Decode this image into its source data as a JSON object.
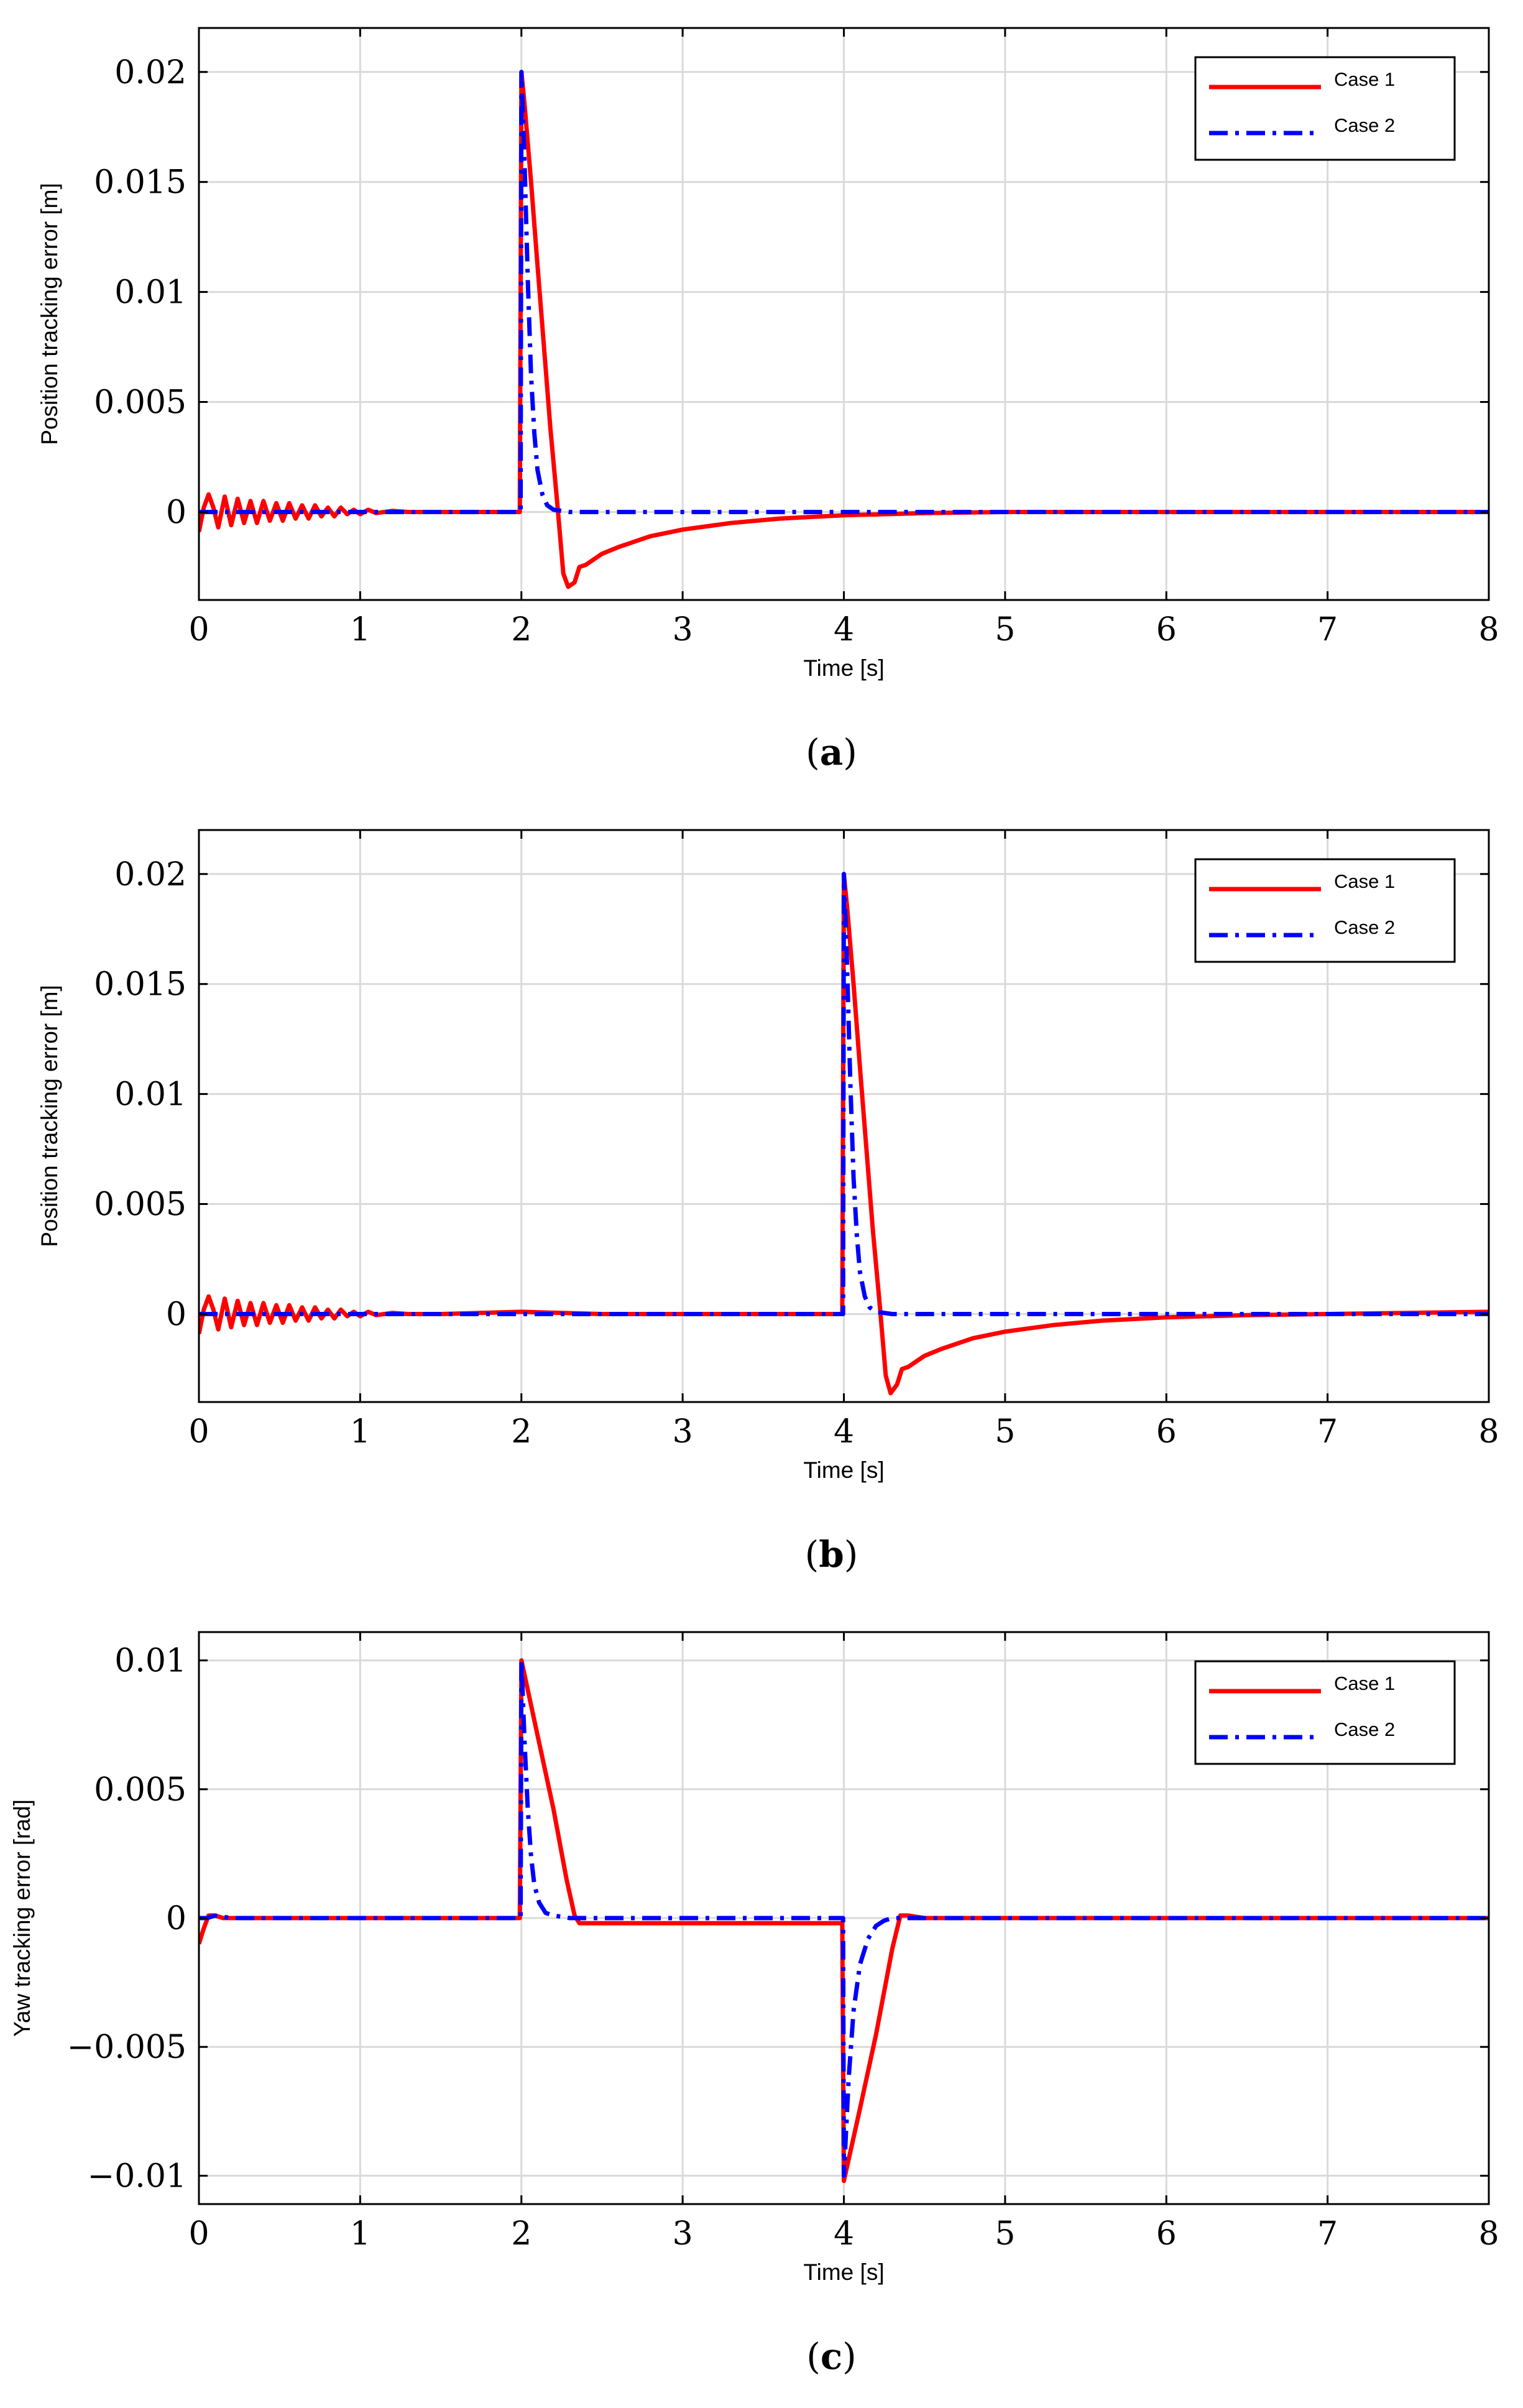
{
  "chart_data": [
    {
      "type": "line",
      "panel": "a",
      "caption": "(a)",
      "caption_letter": "a",
      "xlabel": "Time [s]",
      "ylabel": "Position tracking error [m]",
      "xlim": [
        0,
        8
      ],
      "ylim": [
        -0.004,
        0.022
      ],
      "xticks": [
        0,
        1,
        2,
        3,
        4,
        5,
        6,
        7,
        8
      ],
      "xtick_labels": [
        "0",
        "1",
        "2",
        "3",
        "4",
        "5",
        "6",
        "7",
        "8"
      ],
      "yticks": [
        0,
        0.005,
        0.01,
        0.015,
        0.02
      ],
      "ytick_labels": [
        "0",
        "0.005",
        "0.01",
        "0.015",
        "0.02"
      ],
      "grid": true,
      "legend": {
        "position": "top-right",
        "entries": [
          "Case 1",
          "Case 2"
        ]
      },
      "series": [
        {
          "name": "Case 1",
          "color": "#ff0000",
          "style": "solid",
          "x": [
            0,
            0.03,
            0.06,
            0.09,
            0.12,
            0.16,
            0.2,
            0.24,
            0.28,
            0.32,
            0.36,
            0.4,
            0.44,
            0.48,
            0.52,
            0.56,
            0.6,
            0.64,
            0.68,
            0.72,
            0.76,
            0.8,
            0.84,
            0.88,
            0.92,
            0.96,
            1.0,
            1.05,
            1.1,
            1.2,
            1.3,
            1.5,
            1.99,
            2.0,
            2.02,
            2.06,
            2.1,
            2.14,
            2.18,
            2.22,
            2.26,
            2.29,
            2.33,
            2.36,
            2.4,
            2.5,
            2.6,
            2.8,
            3.0,
            3.3,
            3.6,
            4.0,
            4.5,
            5.0,
            8.0
          ],
          "y": [
            -0.0009,
            0.0002,
            0.0008,
            0.0002,
            -0.0007,
            0.0007,
            -0.0006,
            0.0006,
            -0.0005,
            0.0005,
            -0.0005,
            0.0005,
            -0.0004,
            0.0004,
            -0.0004,
            0.0004,
            -0.0003,
            0.0003,
            -0.0003,
            0.0003,
            -0.0002,
            0.0002,
            -0.0002,
            0.0002,
            -0.0001,
            0.0001,
            -0.0001,
            0.0001,
            -5e-05,
            5e-05,
            0.0,
            0.0,
            0.0,
            0.02,
            0.0185,
            0.015,
            0.0112,
            0.0075,
            0.0038,
            0.0006,
            -0.0028,
            -0.0034,
            -0.0032,
            -0.0025,
            -0.0024,
            -0.0019,
            -0.0016,
            -0.0011,
            -0.0008,
            -0.0005,
            -0.0003,
            -0.00015,
            -5e-05,
            0.0,
            0.0
          ]
        },
        {
          "name": "Case 2",
          "color": "#0000ff",
          "style": "dashdot",
          "x": [
            0,
            1.995,
            2.0,
            2.02,
            2.04,
            2.06,
            2.08,
            2.1,
            2.13,
            2.16,
            2.2,
            2.3,
            8.0
          ],
          "y": [
            0.0,
            0.0,
            0.02,
            0.0158,
            0.0105,
            0.0062,
            0.0036,
            0.0019,
            0.0008,
            0.0003,
            0.0001,
            0.0,
            0.0
          ]
        }
      ]
    },
    {
      "type": "line",
      "panel": "b",
      "caption": "(b)",
      "caption_letter": "b",
      "xlabel": "Time [s]",
      "ylabel": "Position tracking error [m]",
      "xlim": [
        0,
        8
      ],
      "ylim": [
        -0.004,
        0.022
      ],
      "xticks": [
        0,
        1,
        2,
        3,
        4,
        5,
        6,
        7,
        8
      ],
      "xtick_labels": [
        "0",
        "1",
        "2",
        "3",
        "4",
        "5",
        "6",
        "7",
        "8"
      ],
      "yticks": [
        0,
        0.005,
        0.01,
        0.015,
        0.02
      ],
      "ytick_labels": [
        "0",
        "0.005",
        "0.01",
        "0.015",
        "0.02"
      ],
      "grid": true,
      "legend": {
        "position": "top-right",
        "entries": [
          "Case 1",
          "Case 2"
        ]
      },
      "series": [
        {
          "name": "Case 1",
          "color": "#ff0000",
          "style": "solid",
          "x": [
            0,
            0.03,
            0.06,
            0.09,
            0.12,
            0.16,
            0.2,
            0.24,
            0.28,
            0.32,
            0.36,
            0.4,
            0.44,
            0.48,
            0.52,
            0.56,
            0.6,
            0.64,
            0.68,
            0.72,
            0.76,
            0.8,
            0.84,
            0.88,
            0.92,
            0.96,
            1.0,
            1.05,
            1.1,
            1.2,
            1.3,
            1.5,
            2.0,
            2.5,
            3.99,
            4.0,
            4.02,
            4.06,
            4.1,
            4.14,
            4.18,
            4.22,
            4.26,
            4.29,
            4.33,
            4.36,
            4.4,
            4.5,
            4.6,
            4.8,
            5.0,
            5.3,
            5.6,
            6.0,
            6.5,
            7.0,
            8.0
          ],
          "y": [
            -0.0009,
            0.0002,
            0.0008,
            0.0002,
            -0.0007,
            0.0007,
            -0.0006,
            0.0006,
            -0.0005,
            0.0005,
            -0.0005,
            0.0005,
            -0.0004,
            0.0004,
            -0.0004,
            0.0004,
            -0.0003,
            0.0003,
            -0.0003,
            0.0003,
            -0.0002,
            0.0002,
            -0.0002,
            0.0002,
            -0.0001,
            0.0001,
            -0.0001,
            0.0001,
            -5e-05,
            5e-05,
            0.0,
            0.0,
            0.0001,
            0.0,
            0.0,
            0.02,
            0.0185,
            0.015,
            0.0112,
            0.0075,
            0.0038,
            0.0006,
            -0.0028,
            -0.0036,
            -0.0032,
            -0.0025,
            -0.0024,
            -0.0019,
            -0.0016,
            -0.0011,
            -0.0008,
            -0.0005,
            -0.0003,
            -0.00015,
            -5e-05,
            0.0,
            0.0001
          ]
        },
        {
          "name": "Case 2",
          "color": "#0000ff",
          "style": "dashdot",
          "x": [
            0,
            3.995,
            4.0,
            4.02,
            4.04,
            4.06,
            4.08,
            4.1,
            4.13,
            4.16,
            4.2,
            4.3,
            8.0
          ],
          "y": [
            0.0,
            0.0,
            0.02,
            0.0158,
            0.0105,
            0.0062,
            0.0036,
            0.0019,
            0.0008,
            0.0003,
            0.0001,
            0.0,
            0.0
          ]
        }
      ]
    },
    {
      "type": "line",
      "panel": "c",
      "caption": "(c)",
      "caption_letter": "c",
      "xlabel": "Time [s]",
      "ylabel": "Yaw tracking error [rad]",
      "xlim": [
        0,
        8
      ],
      "ylim": [
        -0.0111,
        0.0111
      ],
      "xticks": [
        0,
        1,
        2,
        3,
        4,
        5,
        6,
        7,
        8
      ],
      "xtick_labels": [
        "0",
        "1",
        "2",
        "3",
        "4",
        "5",
        "6",
        "7",
        "8"
      ],
      "yticks": [
        -0.01,
        -0.005,
        0,
        0.005,
        0.01
      ],
      "ytick_labels": [
        "−0.01",
        "−0.005",
        "0",
        "0.005",
        "0.01"
      ],
      "grid": true,
      "legend": {
        "position": "top-right",
        "entries": [
          "Case 1",
          "Case 2"
        ]
      },
      "series": [
        {
          "name": "Case 1",
          "color": "#ff0000",
          "style": "solid",
          "x": [
            0,
            0.03,
            0.06,
            0.1,
            0.15,
            0.25,
            1.99,
            2.0,
            2.1,
            2.2,
            2.28,
            2.33,
            2.36,
            2.4,
            3.99,
            4.0,
            4.1,
            4.2,
            4.3,
            4.35,
            4.4,
            4.5,
            8.0
          ],
          "y": [
            -0.001,
            -0.0004,
            0.0001,
            0.0001,
            0.0,
            0.0,
            0.0,
            0.01,
            0.0071,
            0.0042,
            0.0015,
            0.0001,
            -0.0002,
            -0.0002,
            -0.0002,
            -0.0102,
            -0.0074,
            -0.0045,
            -0.0012,
            0.0001,
            0.0001,
            0.0,
            0.0
          ]
        },
        {
          "name": "Case 2",
          "color": "#0000ff",
          "style": "dashdot",
          "x": [
            0,
            0.05,
            0.1,
            0.2,
            1.995,
            2.0,
            2.02,
            2.04,
            2.06,
            2.08,
            2.11,
            2.15,
            2.2,
            2.3,
            3.995,
            4.0,
            4.03,
            4.06,
            4.1,
            4.15,
            4.2,
            4.25,
            4.3,
            4.4,
            8.0
          ],
          "y": [
            0.0,
            0.0,
            0.0001,
            0.0,
            0.0,
            0.01,
            0.0068,
            0.0042,
            0.0024,
            0.0013,
            0.0006,
            0.0002,
            0.0001,
            0.0,
            0.0,
            -0.01,
            -0.0062,
            -0.0036,
            -0.0018,
            -0.0008,
            -0.0003,
            -0.0001,
            0.0,
            0.0,
            0.0
          ]
        }
      ]
    }
  ]
}
